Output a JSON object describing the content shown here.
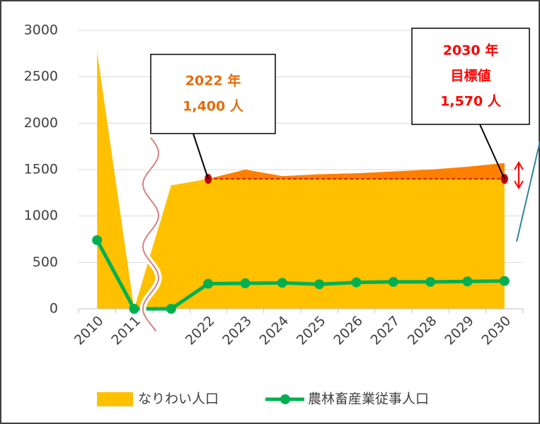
{
  "chart_data": {
    "type": "combo",
    "categories": [
      "2010",
      "2011",
      null,
      "2022",
      "2023",
      "2024",
      "2025",
      "2026",
      "2027",
      "2028",
      "2029",
      "2030"
    ],
    "series": [
      {
        "name": "なりわい人口",
        "kind": "area",
        "color": "#ffc000",
        "values": [
          2770,
          0,
          1330,
          1400,
          1500,
          1430,
          1450,
          1460,
          1480,
          1500,
          1530,
          1570
        ]
      },
      {
        "name": "農林畜産業従事人口",
        "kind": "line",
        "color": "#00b050",
        "values": [
          740,
          0,
          0,
          270,
          275,
          280,
          265,
          285,
          290,
          290,
          295,
          300
        ]
      }
    ],
    "ylim": [
      0,
      3000
    ],
    "yticks": [
      0,
      500,
      1000,
      1500,
      2000,
      2500,
      3000
    ],
    "grid": true,
    "legend": "bottom",
    "reference_line": {
      "value": 1400,
      "color": "#c00000",
      "fill_above": "#ff7f00"
    },
    "annotations": [
      {
        "lines": [
          "2022 年",
          "1,400 人"
        ],
        "color": "#e46c0a"
      },
      {
        "lines": [
          "2030 年",
          "目標値",
          "1,570 人"
        ],
        "color": "#ff0000"
      }
    ]
  }
}
